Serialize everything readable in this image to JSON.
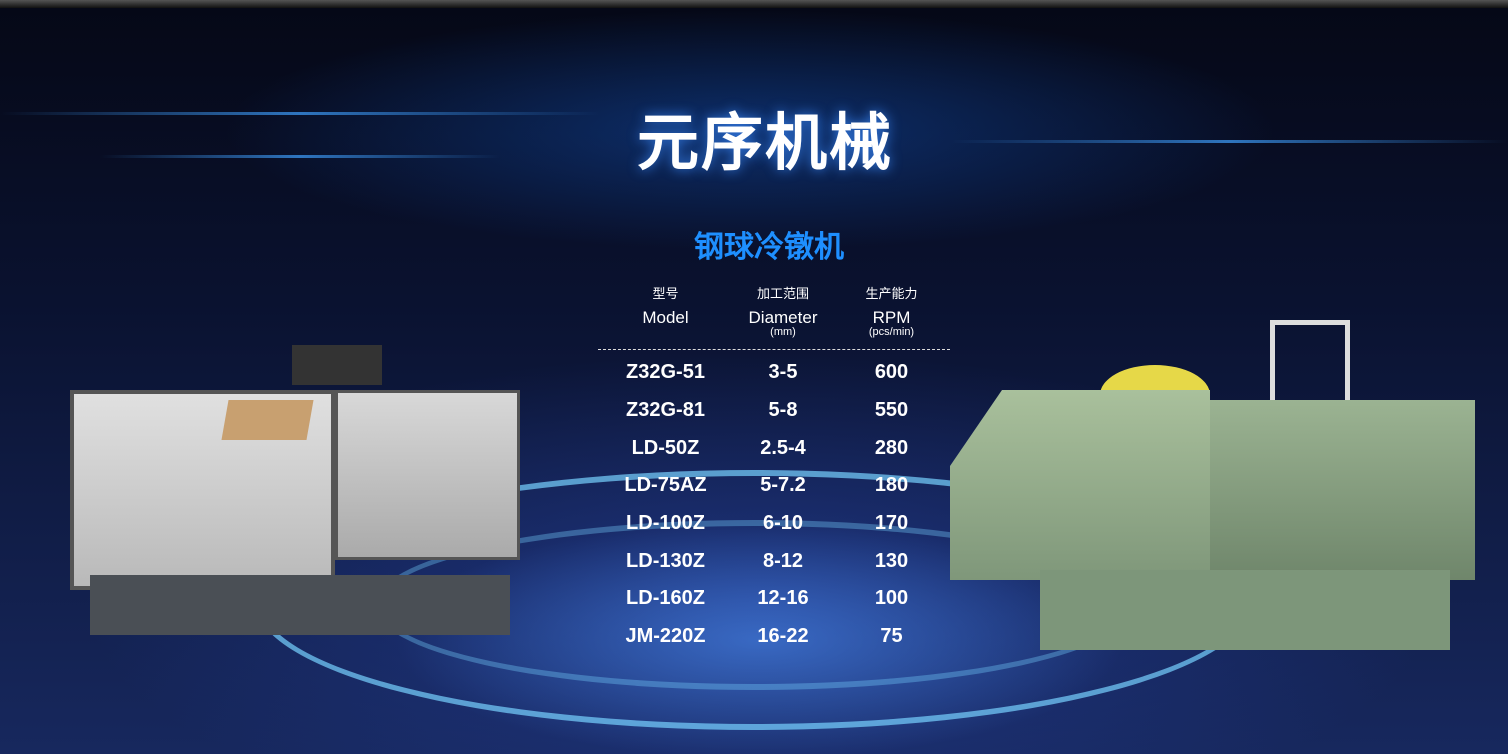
{
  "header": {
    "title": "元序机械",
    "subtitle": "钢球冷镦机"
  },
  "table": {
    "columns": [
      {
        "cn": "型号",
        "en": "Model",
        "unit": ""
      },
      {
        "cn": "加工范围",
        "en": "Diameter",
        "unit": "(mm)"
      },
      {
        "cn": "生产能力",
        "en": "RPM",
        "unit": "(pcs/min)"
      }
    ],
    "rows": [
      [
        "Z32G-51",
        "3-5",
        "600"
      ],
      [
        "Z32G-81",
        "5-8",
        "550"
      ],
      [
        "LD-50Z",
        "2.5-4",
        "280"
      ],
      [
        "LD-75AZ",
        "5-7.2",
        "180"
      ],
      [
        "LD-100Z",
        "6-10",
        "170"
      ],
      [
        "LD-130Z",
        "8-12",
        "130"
      ],
      [
        "LD-160Z",
        "12-16",
        "100"
      ],
      [
        "JM-220Z",
        "16-22",
        "75"
      ]
    ]
  },
  "colors": {
    "title": "#ffffff",
    "subtitle": "#1e8fff",
    "background": "#0a1230",
    "accent": "#78d2ff"
  }
}
